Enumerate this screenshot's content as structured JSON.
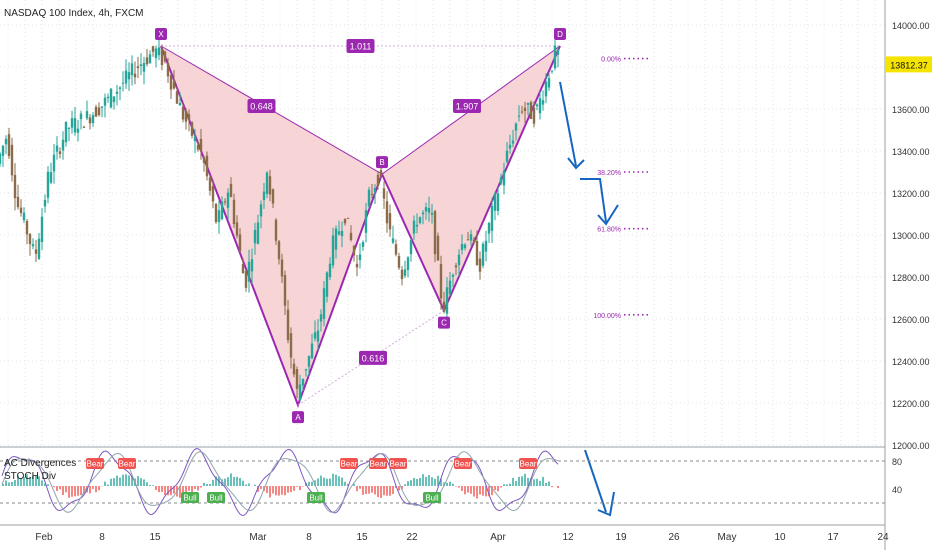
{
  "header": {
    "symbol_title": "NASDAQ 100 Index, 4h, FXCM"
  },
  "colors": {
    "up": "#26a69a",
    "down": "#8b6b4a",
    "pattern_line": "#9c27b0",
    "pattern_fill": "#f4c7c9",
    "pattern_label_bg": "#9c27b0",
    "fib_text": "#9c27b0",
    "arrow": "#1565c0",
    "price_badge": "#f5e400"
  },
  "chart_data": [
    {
      "type": "candlestick",
      "title": "NASDAQ 100 Index, 4h, FXCM",
      "ylim": [
        12000,
        14100
      ],
      "y_ticks": [
        12000,
        12200,
        12400,
        12600,
        12800,
        13000,
        13200,
        13400,
        13600,
        13800,
        14000
      ],
      "y_tick_labels": [
        "12000.00",
        "12200.00",
        "12400.00",
        "12600.00",
        "12800.00",
        "13000.00",
        "13200.00",
        "13400.00",
        "13600.00",
        "13800.00",
        "14000.00"
      ],
      "x_tick_labels": [
        "Feb",
        "8",
        "15",
        "Mar",
        "8",
        "15",
        "22",
        "Apr",
        "12",
        "19",
        "26",
        "May",
        "10",
        "17",
        "24"
      ],
      "last_price": "13812.37",
      "price_path": [
        {
          "t": 0,
          "v": 13340
        },
        {
          "t": 10,
          "v": 13480
        },
        {
          "t": 20,
          "v": 13150
        },
        {
          "t": 28,
          "v": 13050
        },
        {
          "t": 38,
          "v": 12890
        },
        {
          "t": 52,
          "v": 13300
        },
        {
          "t": 70,
          "v": 13510
        },
        {
          "t": 90,
          "v": 13560
        },
        {
          "t": 110,
          "v": 13640
        },
        {
          "t": 125,
          "v": 13720
        },
        {
          "t": 140,
          "v": 13800
        },
        {
          "t": 158,
          "v": 13880
        },
        {
          "t": 168,
          "v": 13820
        },
        {
          "t": 185,
          "v": 13580
        },
        {
          "t": 205,
          "v": 13380
        },
        {
          "t": 220,
          "v": 13050
        },
        {
          "t": 232,
          "v": 13230
        },
        {
          "t": 248,
          "v": 12760
        },
        {
          "t": 260,
          "v": 13050
        },
        {
          "t": 270,
          "v": 13320
        },
        {
          "t": 282,
          "v": 12900
        },
        {
          "t": 292,
          "v": 12480
        },
        {
          "t": 300,
          "v": 12250
        },
        {
          "t": 312,
          "v": 12420
        },
        {
          "t": 322,
          "v": 12570
        },
        {
          "t": 334,
          "v": 12930
        },
        {
          "t": 348,
          "v": 13100
        },
        {
          "t": 360,
          "v": 12840
        },
        {
          "t": 372,
          "v": 13180
        },
        {
          "t": 382,
          "v": 13290
        },
        {
          "t": 392,
          "v": 13020
        },
        {
          "t": 405,
          "v": 12820
        },
        {
          "t": 420,
          "v": 13080
        },
        {
          "t": 434,
          "v": 13110
        },
        {
          "t": 446,
          "v": 12640
        },
        {
          "t": 458,
          "v": 12880
        },
        {
          "t": 470,
          "v": 13010
        },
        {
          "t": 483,
          "v": 12860
        },
        {
          "t": 496,
          "v": 13120
        },
        {
          "t": 510,
          "v": 13380
        },
        {
          "t": 524,
          "v": 13610
        },
        {
          "t": 538,
          "v": 13570
        },
        {
          "t": 550,
          "v": 13740
        },
        {
          "t": 558,
          "v": 13860
        }
      ],
      "harmonic_pattern": {
        "points": [
          {
            "name": "X",
            "t": 161,
            "v": 13900
          },
          {
            "name": "A",
            "t": 298,
            "v": 12190
          },
          {
            "name": "B",
            "t": 382,
            "v": 13290
          },
          {
            "name": "C",
            "t": 444,
            "v": 12640
          },
          {
            "name": "D",
            "t": 560,
            "v": 13900
          }
        ],
        "ratios": [
          "1.011",
          "0.648",
          "1.907",
          "0.616"
        ]
      },
      "fib_levels": [
        {
          "label": "0.00%",
          "v": 13840
        },
        {
          "label": "38.20%",
          "v": 13300
        },
        {
          "label": "61.80%",
          "v": 13030
        },
        {
          "label": "100.00%",
          "v": 12620
        }
      ]
    },
    {
      "type": "oscillator",
      "title": "AC Divergences / STOCH Div",
      "ylim": [
        0,
        100
      ],
      "y_ticks": [
        40,
        80
      ],
      "y_tick_labels": [
        "40",
        "80"
      ],
      "legend": [
        "AC Divergences",
        "STOCH Div"
      ],
      "signals": [
        {
          "label": "Bear",
          "t": 95
        },
        {
          "label": "Bear",
          "t": 127
        },
        {
          "label": "Bull",
          "t": 190
        },
        {
          "label": "Bull",
          "t": 216
        },
        {
          "label": "Bull",
          "t": 316
        },
        {
          "label": "Bear",
          "t": 349
        },
        {
          "label": "Bear",
          "t": 378
        },
        {
          "label": "Bear",
          "t": 398
        },
        {
          "label": "Bull",
          "t": 432
        },
        {
          "label": "Bear",
          "t": 463
        },
        {
          "label": "Bear",
          "t": 528
        }
      ]
    }
  ]
}
